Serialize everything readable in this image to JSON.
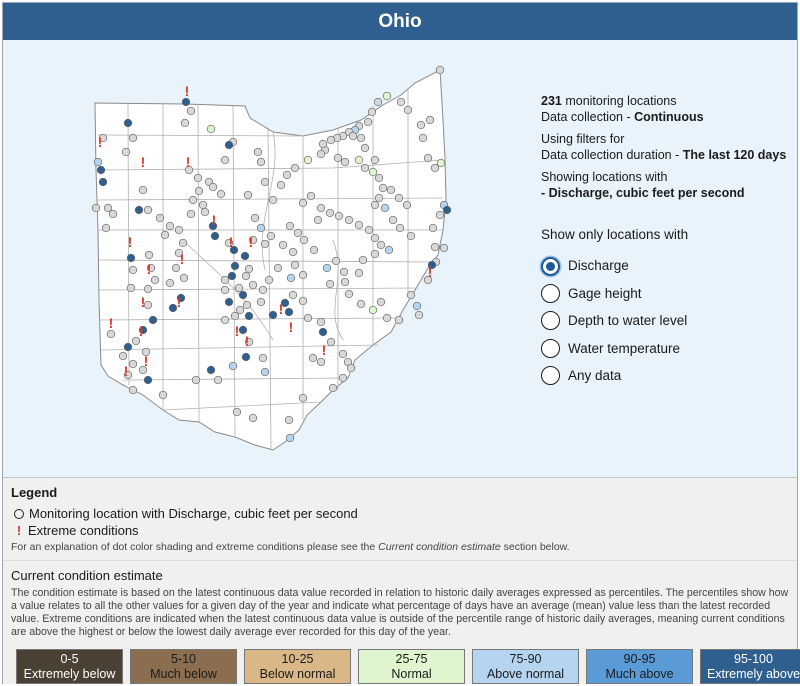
{
  "header": {
    "title": "Ohio"
  },
  "info": {
    "count": "231",
    "count_suffix": " monitoring locations",
    "collection_prefix": "Data collection - ",
    "collection_value": "Continuous",
    "filters_label": "Using filters for",
    "duration_prefix": "Data collection duration - ",
    "duration_value": "The last 120 days",
    "showing_label": "Showing locations with",
    "showing_value": "- Discharge, cubic feet per second"
  },
  "filter": {
    "title": "Show only locations with",
    "options": [
      {
        "label": "Discharge",
        "checked": true
      },
      {
        "label": "Gage height",
        "checked": false
      },
      {
        "label": "Depth to water level",
        "checked": false
      },
      {
        "label": "Water temperature",
        "checked": false
      },
      {
        "label": "Any data",
        "checked": false
      }
    ]
  },
  "legend": {
    "title": "Legend",
    "item_location": "Monitoring location with Discharge, cubic feet per second",
    "item_extreme": "Extreme conditions",
    "note_prefix": "For an explanation of dot color shading and extreme conditions please see the ",
    "note_link": "Current condition estimate",
    "note_suffix": " section below."
  },
  "condition": {
    "title": "Current condition estimate",
    "text": "The condition estimate is based on the latest continuous data value recorded in relation to historic daily averages expressed as percentiles. The percentiles show how a value relates to all the other values for a given day of the year and indicate what percentage of days have an average (mean) value less than the latest recorded value. Extreme conditions are indicated when the latest continuous data value is outside of the percentile range of historic daily averages, meaning current conditions are above the highest or below the lowest daily average ever recorded for this day of the year.",
    "bins": [
      {
        "range": "0-5",
        "label": "Extremely below",
        "bg": "#4a4033",
        "fg": "#ffffff"
      },
      {
        "range": "5-10",
        "label": "Much below",
        "bg": "#8b6e4f",
        "fg": "#1b1b1b"
      },
      {
        "range": "10-25",
        "label": "Below normal",
        "bg": "#d9b787",
        "fg": "#1b1b1b"
      },
      {
        "range": "25-75",
        "label": "Normal",
        "bg": "#dff5cf",
        "fg": "#1b1b1b"
      },
      {
        "range": "75-90",
        "label": "Above normal",
        "bg": "#b5d4f0",
        "fg": "#1b1b1b"
      },
      {
        "range": "90-95",
        "label": "Much above",
        "bg": "#5a9ad6",
        "fg": "#1b1b1b"
      },
      {
        "range": "95-100",
        "label": "Extremely above",
        "bg": "#2e5f8f",
        "fg": "#ffffff"
      }
    ]
  },
  "colors": {
    "header_bg": "#2e5f8f",
    "map_bg": "#e8f3fb",
    "extreme": "#d93a2b",
    "dot_no_data": "#d8d8d8",
    "dot_normal": "#dff5cf",
    "dot_above": "#b5d4f0",
    "dot_much_above": "#5a9ad6",
    "dot_extremely_above": "#2e5f8f"
  }
}
